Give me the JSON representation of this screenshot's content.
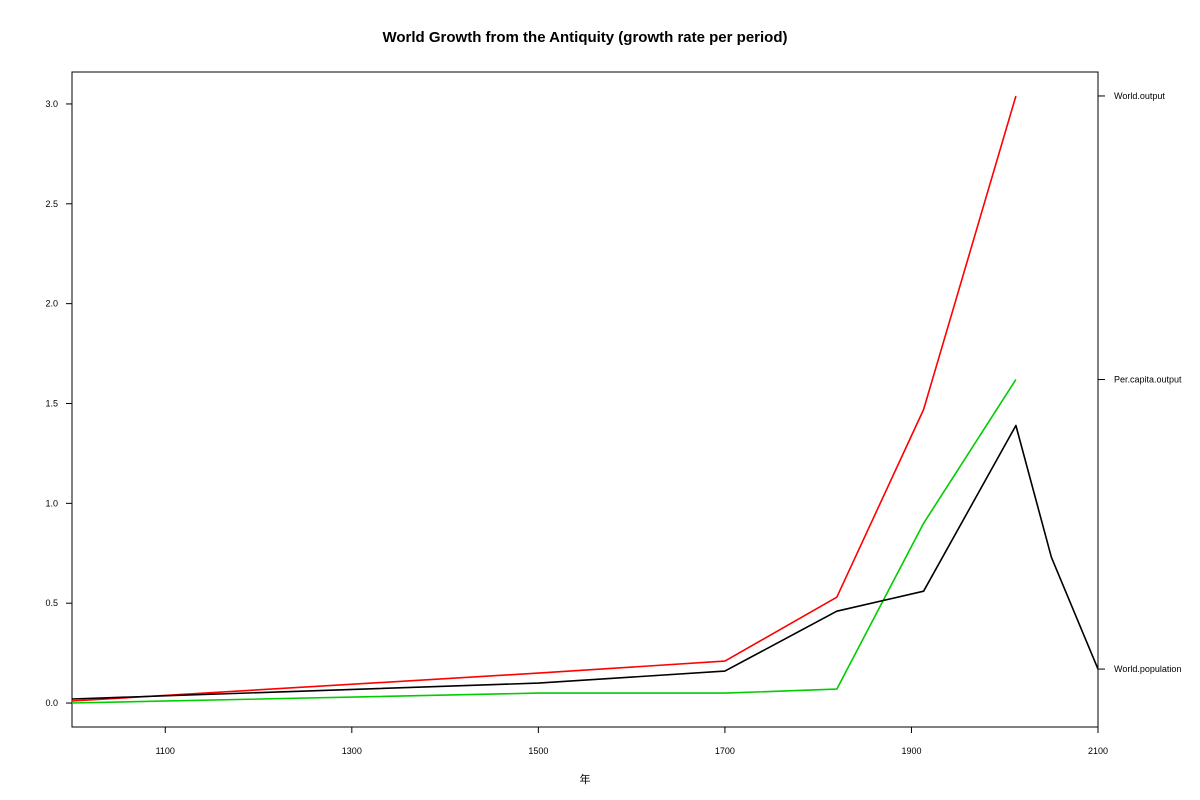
{
  "chart_data": {
    "type": "line",
    "title": "World Growth from the Antiquity (growth rate per period)",
    "xlabel": "年",
    "ylabel": "",
    "xlim": [
      1000,
      2100
    ],
    "ylim": [
      -0.12,
      3.16
    ],
    "x_ticks": [
      1100,
      1300,
      1500,
      1700,
      1900,
      2100
    ],
    "y_ticks": [
      0.0,
      0.5,
      1.0,
      1.5,
      2.0,
      2.5,
      3.0
    ],
    "grid": false,
    "legend": "none; series named by labels on the right axis",
    "series": [
      {
        "name": "World.output",
        "color": "#ff0000",
        "right_label_value": 3.04,
        "points": [
          [
            1000,
            0.01
          ],
          [
            1500,
            0.15
          ],
          [
            1700,
            0.21
          ],
          [
            1820,
            0.53
          ],
          [
            1913,
            1.47
          ],
          [
            2012,
            3.04
          ]
        ]
      },
      {
        "name": "Per.capita.output",
        "color": "#00cd00",
        "right_label_value": 1.62,
        "points": [
          [
            1000,
            0.0
          ],
          [
            1500,
            0.05
          ],
          [
            1700,
            0.05
          ],
          [
            1820,
            0.07
          ],
          [
            1913,
            0.9
          ],
          [
            2012,
            1.62
          ]
        ]
      },
      {
        "name": "World.population",
        "color": "#000000",
        "right_label_value": 0.17,
        "points": [
          [
            1000,
            0.02
          ],
          [
            1500,
            0.1
          ],
          [
            1700,
            0.16
          ],
          [
            1820,
            0.46
          ],
          [
            1913,
            0.56
          ],
          [
            2012,
            1.39
          ],
          [
            2050,
            0.73
          ],
          [
            2100,
            0.17
          ]
        ]
      }
    ]
  }
}
